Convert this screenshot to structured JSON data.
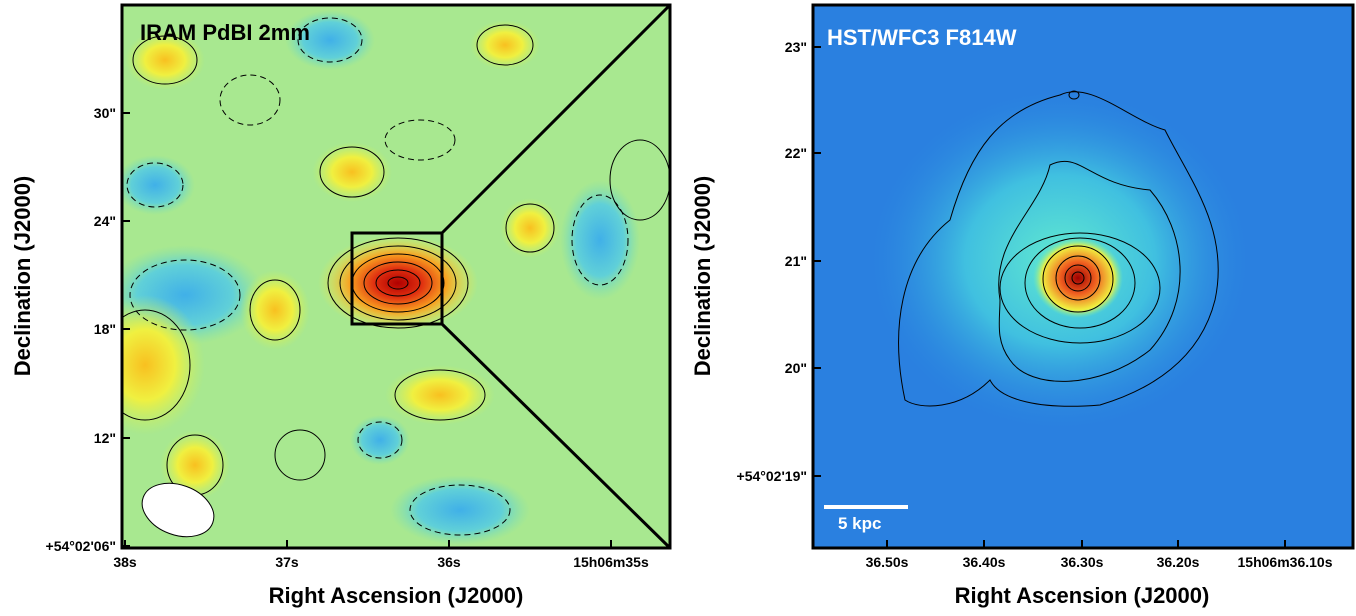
{
  "left_panel": {
    "title": "IRAM PdBI 2mm",
    "y_ticks": [
      "30\"",
      "24\"",
      "18\"",
      "12\"",
      "+54°02'06\""
    ],
    "x_ticks": [
      "38s",
      "37s",
      "36s",
      "15h06m35s"
    ],
    "x_label": "Right Ascension (J2000)",
    "y_label": "Declination (J2000)"
  },
  "right_panel": {
    "title": "HST/WFC3 F814W",
    "y_ticks": [
      "23\"",
      "22\"",
      "21\"",
      "20\"",
      "+54°02'19\""
    ],
    "x_ticks": [
      "36.50s",
      "36.40s",
      "36.30s",
      "36.20s",
      "15h06m36.10s"
    ],
    "x_label": "Right Ascension (J2000)",
    "y_label": "Declination (J2000)",
    "scale_bar": "5 kpc"
  }
}
